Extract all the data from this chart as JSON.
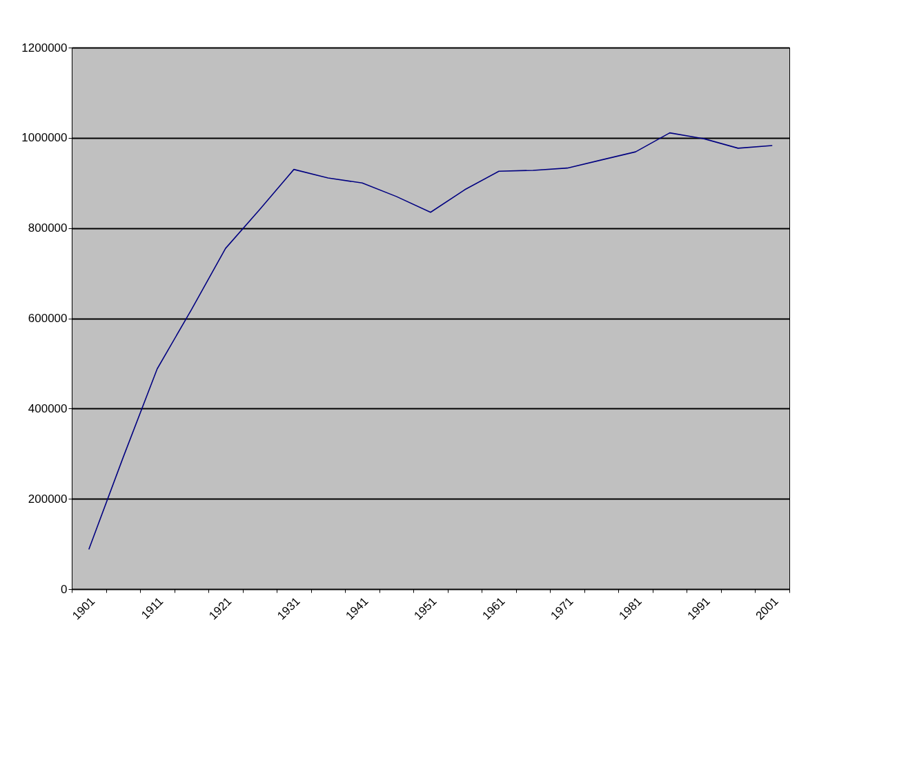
{
  "chart_data": {
    "type": "line",
    "categories": [
      "1901",
      null,
      "1911",
      null,
      "1921",
      null,
      "1931",
      null,
      "1941",
      null,
      "1951",
      null,
      "1961",
      null,
      "1971",
      null,
      "1981",
      null,
      "1991",
      null,
      "2001"
    ],
    "series": [
      {
        "color": "#000080",
        "values": [
          88000,
          291000,
          488000,
          619000,
          755000,
          841000,
          930000,
          911000,
          900000,
          870000,
          835000,
          885000,
          926000,
          928000,
          933000,
          951000,
          969000,
          1011000,
          998000,
          977000,
          983000
        ]
      }
    ],
    "ylim": [
      0,
      1200000
    ],
    "yticks": [
      0,
      200000,
      400000,
      600000,
      800000,
      1000000,
      1200000
    ],
    "grid": "y",
    "legend": false,
    "marker": "none",
    "line_style": "solid"
  }
}
